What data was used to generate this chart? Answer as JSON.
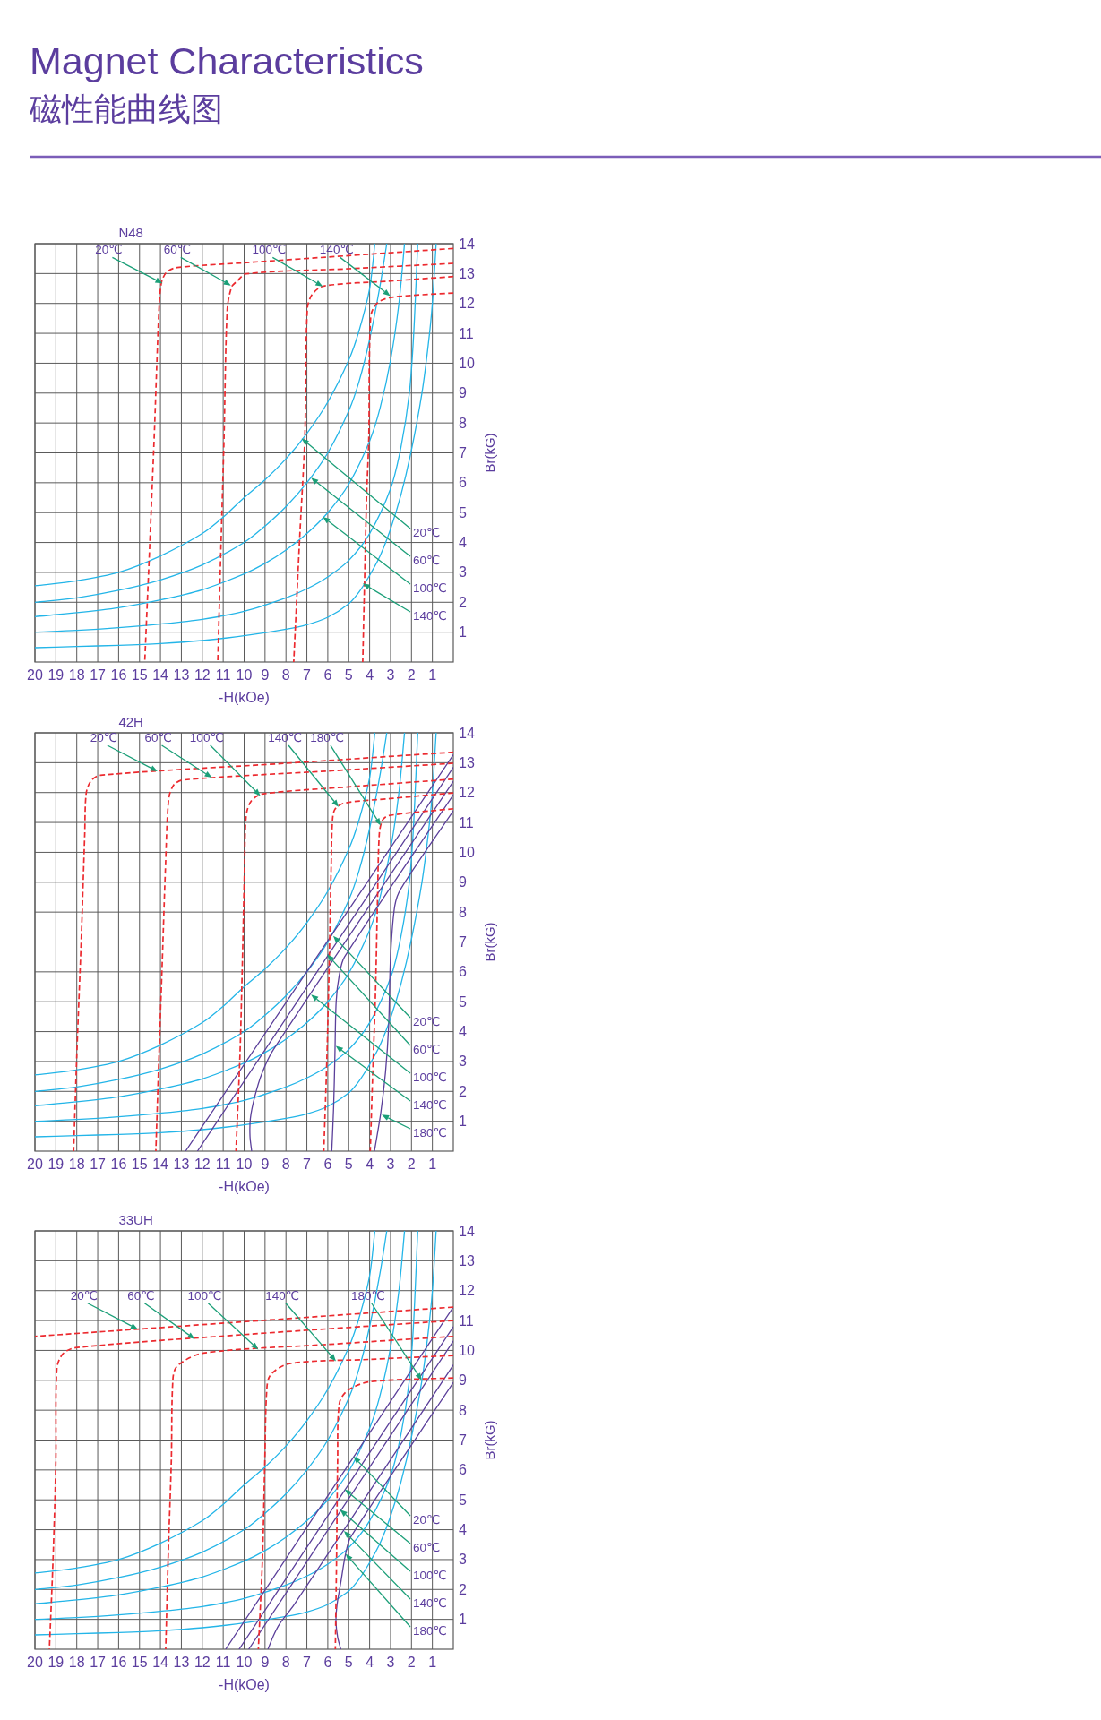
{
  "chart_data": [
    {
      "type": "other",
      "title": "Magnet Characteristics",
      "subtitle": "磁性能曲线图"
    },
    {
      "type": "line",
      "title": "N48",
      "xlabel": "-H(kOe)",
      "ylabel": "Br(kG)",
      "xlim": [
        20,
        0
      ],
      "ylim": [
        0,
        14
      ],
      "xticks": [
        20,
        19,
        18,
        17,
        16,
        15,
        14,
        13,
        12,
        11,
        10,
        9,
        8,
        7,
        6,
        5,
        4,
        3,
        2,
        1
      ],
      "yticks": [
        1,
        2,
        3,
        4,
        5,
        6,
        7,
        8,
        9,
        10,
        11,
        12,
        13,
        14
      ],
      "grid": true,
      "line_style": "solid",
      "series": [
        {
          "color": "#23b5e8",
          "x": [
            20,
            18,
            16,
            14,
            12,
            11,
            10,
            9,
            8,
            7,
            6,
            5,
            4.5,
            4,
            3.75
          ],
          "values": [
            2.55,
            2.72,
            3.0,
            3.55,
            4.3,
            4.85,
            5.5,
            6.1,
            6.8,
            7.65,
            8.7,
            10.1,
            11.1,
            12.5,
            14
          ]
        },
        {
          "color": "#23b5e8",
          "x": [
            20,
            18,
            16,
            14,
            12,
            10,
            9,
            8,
            7,
            6,
            5,
            4.5,
            4,
            3.5,
            3.18
          ],
          "values": [
            2.0,
            2.15,
            2.4,
            2.75,
            3.25,
            4.0,
            4.55,
            5.2,
            6.0,
            7.0,
            8.4,
            9.4,
            10.8,
            12.6,
            14
          ]
        },
        {
          "color": "#23b5e8",
          "x": [
            20,
            18,
            16,
            14,
            12,
            10,
            9,
            8,
            7,
            6,
            5,
            4,
            3.5,
            3,
            2.6,
            2.33
          ],
          "values": [
            1.52,
            1.65,
            1.82,
            2.08,
            2.42,
            2.95,
            3.3,
            3.75,
            4.3,
            5.0,
            5.95,
            7.4,
            8.5,
            10.1,
            12.0,
            14
          ]
        },
        {
          "color": "#23b5e8",
          "x": [
            20,
            18,
            16,
            14,
            12,
            10,
            8,
            7,
            6,
            5,
            4,
            3,
            2.5,
            2.1,
            1.9,
            1.7
          ],
          "values": [
            1.0,
            1.06,
            1.15,
            1.27,
            1.43,
            1.7,
            2.15,
            2.45,
            2.85,
            3.4,
            4.3,
            5.8,
            7.2,
            9.0,
            10.9,
            14
          ]
        },
        {
          "color": "#23b5e8",
          "x": [
            20,
            18,
            16,
            14,
            12,
            10,
            8,
            7,
            6,
            5,
            4.5,
            4,
            3.5,
            3,
            2.5,
            2,
            1.5,
            1.2,
            1.0,
            0.82
          ],
          "values": [
            0.48,
            0.52,
            0.56,
            0.62,
            0.72,
            0.88,
            1.1,
            1.25,
            1.5,
            1.95,
            2.35,
            2.9,
            3.55,
            4.45,
            5.6,
            7.1,
            9.0,
            10.6,
            12.0,
            14
          ]
        },
        {
          "color": "#ec2a2f",
          "line_style": "dashed",
          "x": [
            0,
            5,
            10,
            13.2,
            13.7,
            13.95,
            14.07,
            14.3,
            14.52,
            14.75
          ],
          "values": [
            13.84,
            13.6,
            13.36,
            13.2,
            13.05,
            12.7,
            11.8,
            7.5,
            3.8,
            0
          ]
        },
        {
          "color": "#ec2a2f",
          "line_style": "dashed",
          "x": [
            0,
            5,
            9.9,
            10.36,
            10.6,
            10.81,
            10.96,
            11.11,
            11.26
          ],
          "values": [
            13.34,
            13.16,
            12.99,
            12.73,
            12.55,
            11.77,
            7.5,
            3.8,
            0
          ]
        },
        {
          "color": "#ec2a2f",
          "line_style": "dashed",
          "x": [
            0,
            3,
            6.2,
            6.75,
            6.98,
            7.1,
            7.33,
            7.63
          ],
          "values": [
            12.9,
            12.75,
            12.58,
            12.3,
            11.8,
            7.5,
            4.35,
            0
          ]
        },
        {
          "color": "#ec2a2f",
          "line_style": "dashed",
          "x": [
            0,
            3.0,
            3.65,
            3.95,
            4.04,
            4.15,
            4.33
          ],
          "values": [
            12.35,
            12.2,
            12.0,
            11.55,
            7.5,
            5.4,
            0
          ]
        }
      ],
      "annotations": [
        {
          "text": "20℃",
          "x": 13.9,
          "y": 12.67
        },
        {
          "text": "60℃",
          "x": 10.63,
          "y": 12.6
        },
        {
          "text": "100℃",
          "x": 6.24,
          "y": 12.57
        },
        {
          "text": "140℃",
          "x": 3.01,
          "y": 12.25
        },
        {
          "text": "20℃",
          "x": 7.25,
          "y": 7.48
        },
        {
          "text": "60℃",
          "x": 6.8,
          "y": 6.17
        },
        {
          "text": "100℃",
          "x": 6.24,
          "y": 4.86
        },
        {
          "text": "140℃",
          "x": 4.33,
          "y": 2.63
        }
      ]
    },
    {
      "type": "line",
      "title": "42H",
      "xlabel": "-H(kOe)",
      "ylabel": "Br(kG)",
      "xlim": [
        20,
        0
      ],
      "ylim": [
        0,
        14
      ],
      "xticks": [
        20,
        19,
        18,
        17,
        16,
        15,
        14,
        13,
        12,
        11,
        10,
        9,
        8,
        7,
        6,
        5,
        4,
        3,
        2,
        1
      ],
      "yticks": [
        1,
        2,
        3,
        4,
        5,
        6,
        7,
        8,
        9,
        10,
        11,
        12,
        13,
        14
      ],
      "grid": true,
      "line_style": "solid",
      "series": [
        {
          "color": "#23b5e8",
          "x": [
            20,
            18,
            16,
            14,
            12,
            11,
            10,
            9,
            8,
            7,
            6,
            5,
            4.5,
            4,
            3.75
          ],
          "values": [
            2.55,
            2.72,
            3.0,
            3.55,
            4.3,
            4.85,
            5.5,
            6.1,
            6.8,
            7.65,
            8.7,
            10.1,
            11.1,
            12.5,
            14
          ]
        },
        {
          "color": "#23b5e8",
          "x": [
            20,
            18,
            16,
            14,
            12,
            10,
            9,
            8,
            7,
            6,
            5,
            4.5,
            4,
            3.5,
            3.18
          ],
          "values": [
            2.0,
            2.15,
            2.4,
            2.75,
            3.25,
            4.0,
            4.55,
            5.2,
            6.0,
            7.0,
            8.4,
            9.4,
            10.8,
            12.6,
            14
          ]
        },
        {
          "color": "#23b5e8",
          "x": [
            20,
            18,
            16,
            14,
            12,
            10,
            9,
            8,
            7,
            6,
            5,
            4,
            3.5,
            3,
            2.6,
            2.33
          ],
          "values": [
            1.52,
            1.65,
            1.82,
            2.08,
            2.42,
            2.95,
            3.3,
            3.75,
            4.3,
            5.0,
            5.95,
            7.4,
            8.5,
            10.1,
            12.0,
            14
          ]
        },
        {
          "color": "#23b5e8",
          "x": [
            20,
            18,
            16,
            14,
            12,
            10,
            8,
            7,
            6,
            5,
            4,
            3,
            2.5,
            2.1,
            1.9,
            1.7
          ],
          "values": [
            1.0,
            1.06,
            1.15,
            1.27,
            1.43,
            1.7,
            2.15,
            2.45,
            2.85,
            3.4,
            4.3,
            5.8,
            7.2,
            9.0,
            10.9,
            14
          ]
        },
        {
          "color": "#23b5e8",
          "x": [
            20,
            18,
            16,
            14,
            12,
            10,
            8,
            7,
            6,
            5,
            4.5,
            4,
            3.5,
            3,
            2.5,
            2,
            1.5,
            1.2,
            1.0,
            0.82
          ],
          "values": [
            0.48,
            0.52,
            0.56,
            0.62,
            0.72,
            0.88,
            1.1,
            1.25,
            1.5,
            1.95,
            2.35,
            2.9,
            3.55,
            4.45,
            5.6,
            7.1,
            9.0,
            10.6,
            12.0,
            14
          ]
        },
        {
          "color": "#5b3f9a",
          "x": [
            0,
            12.8
          ],
          "values": [
            13.26,
            0
          ]
        },
        {
          "color": "#5b3f9a",
          "x": [
            0,
            12.23
          ],
          "values": [
            12.84,
            0
          ]
        },
        {
          "color": "#5b3f9a",
          "x": [
            0,
            8.6,
            9.15,
            9.5,
            9.7,
            9.72,
            9.64
          ],
          "values": [
            12.37,
            3.4,
            2.6,
            1.8,
            1.1,
            0.5,
            0
          ]
        },
        {
          "color": "#5b3f9a",
          "x": [
            0,
            5.2,
            5.45,
            5.6,
            5.66,
            5.72,
            5.81
          ],
          "values": [
            11.92,
            6.5,
            5.9,
            5.0,
            3.2,
            1.5,
            0
          ]
        },
        {
          "color": "#5b3f9a",
          "x": [
            0,
            2.5,
            2.8,
            3.0,
            3.09,
            3.24,
            3.47,
            3.77
          ],
          "values": [
            11.39,
            8.79,
            8.2,
            6.5,
            4.2,
            2.65,
            1.27,
            0
          ]
        },
        {
          "color": "#ec2a2f",
          "line_style": "dashed",
          "x": [
            0,
            8,
            16.87,
            17.32,
            17.55,
            17.62,
            17.77,
            18.0,
            18.15
          ],
          "values": [
            13.35,
            12.98,
            12.58,
            12.39,
            11.97,
            10.6,
            7.4,
            3.2,
            0
          ]
        },
        {
          "color": "#ec2a2f",
          "line_style": "dashed",
          "x": [
            0,
            6,
            12.93,
            13.38,
            13.61,
            13.76,
            13.91,
            14.07,
            14.22
          ],
          "values": [
            12.98,
            12.72,
            12.42,
            12.24,
            11.76,
            9.5,
            6.4,
            3.2,
            0
          ]
        },
        {
          "color": "#ec2a2f",
          "line_style": "dashed",
          "x": [
            0,
            5,
            9.14,
            9.67,
            9.9,
            9.98,
            10.08,
            10.2,
            10.39
          ],
          "values": [
            12.45,
            12.19,
            11.95,
            11.71,
            11.23,
            9.5,
            6.4,
            3.2,
            0
          ]
        },
        {
          "color": "#ec2a2f",
          "line_style": "dashed",
          "x": [
            0,
            3,
            5.2,
            5.66,
            5.78,
            5.84,
            5.93,
            6.04,
            6.19
          ],
          "values": [
            11.99,
            11.8,
            11.65,
            11.44,
            11.02,
            9.5,
            6.4,
            3.2,
            0
          ]
        },
        {
          "color": "#ec2a2f",
          "line_style": "dashed",
          "x": [
            0,
            3.09,
            3.39,
            3.54,
            3.62,
            3.72,
            3.85,
            3.97
          ],
          "values": [
            11.46,
            11.23,
            11.07,
            10.59,
            8.5,
            5.3,
            2.65,
            0
          ]
        }
      ],
      "annotations": [
        {
          "text": "20℃",
          "x": 14.14,
          "y": 12.71
        },
        {
          "text": "60℃",
          "x": 11.54,
          "y": 12.5
        },
        {
          "text": "100℃",
          "x": 9.22,
          "y": 11.89
        },
        {
          "text": "140℃",
          "x": 5.48,
          "y": 11.52
        },
        {
          "text": "180℃",
          "x": 3.47,
          "y": 10.9
        },
        {
          "text": "20℃",
          "x": 5.74,
          "y": 7.2
        },
        {
          "text": "60℃",
          "x": 6.04,
          "y": 6.59
        },
        {
          "text": "100℃",
          "x": 6.8,
          "y": 5.24
        },
        {
          "text": "140℃",
          "x": 5.62,
          "y": 3.52
        },
        {
          "text": "180℃",
          "x": 3.42,
          "y": 1.22
        }
      ]
    },
    {
      "type": "line",
      "title": "33UH",
      "xlabel": "-H(kOe)",
      "ylabel": "Br(kG)",
      "xlim": [
        20,
        0
      ],
      "ylim": [
        0,
        14
      ],
      "xticks": [
        20,
        19,
        18,
        17,
        16,
        15,
        14,
        13,
        12,
        11,
        10,
        9,
        8,
        7,
        6,
        5,
        4,
        3,
        2,
        1
      ],
      "yticks": [
        1,
        2,
        3,
        4,
        5,
        6,
        7,
        8,
        9,
        10,
        11,
        12,
        13,
        14
      ],
      "grid": true,
      "line_style": "solid",
      "series": [
        {
          "color": "#23b5e8",
          "x": [
            20,
            18,
            16,
            14,
            12,
            11,
            10,
            9,
            8,
            7,
            6,
            5,
            4.5,
            4,
            3.75
          ],
          "values": [
            2.55,
            2.72,
            3.0,
            3.55,
            4.3,
            4.85,
            5.5,
            6.1,
            6.8,
            7.65,
            8.7,
            10.1,
            11.1,
            12.5,
            14
          ]
        },
        {
          "color": "#23b5e8",
          "x": [
            20,
            18,
            16,
            14,
            12,
            10,
            9,
            8,
            7,
            6,
            5,
            4.5,
            4,
            3.5,
            3.18
          ],
          "values": [
            2.0,
            2.15,
            2.4,
            2.75,
            3.25,
            4.0,
            4.55,
            5.2,
            6.0,
            7.0,
            8.4,
            9.4,
            10.8,
            12.6,
            14
          ]
        },
        {
          "color": "#23b5e8",
          "x": [
            20,
            18,
            16,
            14,
            12,
            10,
            9,
            8,
            7,
            6,
            5,
            4,
            3.5,
            3,
            2.6,
            2.33
          ],
          "values": [
            1.52,
            1.65,
            1.82,
            2.08,
            2.42,
            2.95,
            3.3,
            3.75,
            4.3,
            5.0,
            5.95,
            7.4,
            8.5,
            10.1,
            12.0,
            14
          ]
        },
        {
          "color": "#23b5e8",
          "x": [
            20,
            18,
            16,
            14,
            12,
            10,
            8,
            7,
            6,
            5,
            4,
            3,
            2.5,
            2.1,
            1.9,
            1.7
          ],
          "values": [
            1.0,
            1.06,
            1.15,
            1.27,
            1.43,
            1.7,
            2.15,
            2.45,
            2.85,
            3.4,
            4.3,
            5.8,
            7.2,
            9.0,
            10.9,
            14
          ]
        },
        {
          "color": "#23b5e8",
          "x": [
            20,
            18,
            16,
            14,
            12,
            10,
            8,
            7,
            6,
            5,
            4.5,
            4,
            3.5,
            3,
            2.5,
            2,
            1.5,
            1.2,
            1.0,
            0.82
          ],
          "values": [
            0.48,
            0.52,
            0.56,
            0.62,
            0.72,
            0.88,
            1.1,
            1.25,
            1.5,
            1.95,
            2.35,
            2.9,
            3.55,
            4.45,
            5.6,
            7.1,
            9.0,
            10.6,
            12.0,
            14
          ]
        },
        {
          "color": "#5b3f9a",
          "x": [
            0,
            10.88
          ],
          "values": [
            11.45,
            0
          ]
        },
        {
          "color": "#5b3f9a",
          "x": [
            0,
            10.24
          ],
          "values": [
            10.79,
            0
          ]
        },
        {
          "color": "#5b3f9a",
          "x": [
            0,
            9.78
          ],
          "values": [
            10.31,
            0
          ]
        },
        {
          "color": "#5b3f9a",
          "x": [
            0,
            7.6,
            8.3,
            8.6,
            8.86
          ],
          "values": [
            9.51,
            1.5,
            0.85,
            0.45,
            0
          ]
        },
        {
          "color": "#5b3f9a",
          "x": [
            0,
            4.9,
            5.15,
            5.38,
            5.56,
            5.61,
            5.53,
            5.38
          ],
          "values": [
            8.92,
            3.76,
            3.19,
            2.23,
            1.48,
            0.94,
            0.41,
            0
          ]
        },
        {
          "color": "#ec2a2f",
          "line_style": "dashed",
          "x": [
            0,
            20
          ],
          "values": [
            11.45,
            10.47
          ]
        },
        {
          "color": "#ec2a2f",
          "line_style": "dashed",
          "x": [
            0,
            10,
            18.06,
            18.67,
            18.95,
            19.0,
            19.13,
            19.31
          ],
          "values": [
            11.0,
            10.53,
            10.09,
            9.88,
            9.4,
            6.3,
            3.1,
            0
          ]
        },
        {
          "color": "#ec2a2f",
          "line_style": "dashed",
          "x": [
            0,
            6,
            11.95,
            13.17,
            13.4,
            13.48,
            13.63,
            13.75
          ],
          "values": [
            10.47,
            10.2,
            9.91,
            9.5,
            9.08,
            6.3,
            3.1,
            0
          ]
        },
        {
          "color": "#ec2a2f",
          "line_style": "dashed",
          "x": [
            0,
            4,
            7.82,
            8.74,
            8.92,
            9.01,
            9.12,
            9.32
          ],
          "values": [
            9.83,
            9.7,
            9.56,
            9.18,
            8.65,
            6.3,
            3.1,
            0
          ]
        },
        {
          "color": "#ec2a2f",
          "line_style": "dashed",
          "x": [
            0,
            4.0,
            5.07,
            5.45,
            5.53,
            5.58,
            5.64
          ],
          "values": [
            9.08,
            8.95,
            8.65,
            8.22,
            6.3,
            3.1,
            0
          ]
        }
      ],
      "annotations": [
        {
          "text": "20℃",
          "x": 15.08,
          "y": 10.71
        },
        {
          "text": "60℃",
          "x": 12.36,
          "y": 10.38
        },
        {
          "text": "100℃",
          "x": 9.32,
          "y": 10.03
        },
        {
          "text": "140℃",
          "x": 5.61,
          "y": 9.64
        },
        {
          "text": "180℃",
          "x": 1.51,
          "y": 9.0
        },
        {
          "text": "20℃",
          "x": 4.77,
          "y": 6.45
        },
        {
          "text": "60℃",
          "x": 5.19,
          "y": 5.35
        },
        {
          "text": "100℃",
          "x": 5.41,
          "y": 4.67
        },
        {
          "text": "140℃",
          "x": 5.23,
          "y": 3.96
        },
        {
          "text": "180℃",
          "x": 5.15,
          "y": 3.19
        }
      ]
    }
  ]
}
